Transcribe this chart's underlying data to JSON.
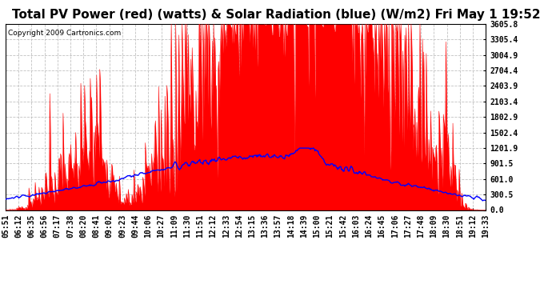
{
  "title": "Total PV Power (red) (watts) & Solar Radiation (blue) (W/m2) Fri May 1 19:52",
  "copyright": "Copyright 2009 Cartronics.com",
  "ymin": 0.0,
  "ymax": 3605.8,
  "yticks": [
    0.0,
    300.5,
    601.0,
    901.5,
    1201.9,
    1502.4,
    1802.9,
    2103.4,
    2403.9,
    2704.4,
    3004.9,
    3305.4,
    3605.8
  ],
  "xtick_labels": [
    "05:51",
    "06:12",
    "06:35",
    "06:56",
    "07:17",
    "07:38",
    "08:20",
    "08:41",
    "09:02",
    "09:23",
    "09:44",
    "10:06",
    "10:27",
    "11:09",
    "11:30",
    "11:51",
    "12:12",
    "12:33",
    "12:54",
    "13:15",
    "13:36",
    "13:57",
    "14:18",
    "14:39",
    "15:00",
    "15:21",
    "15:42",
    "16:03",
    "16:24",
    "16:45",
    "17:06",
    "17:27",
    "17:48",
    "18:09",
    "18:30",
    "18:51",
    "19:12",
    "19:33"
  ],
  "background_color": "#ffffff",
  "plot_bg_color": "#ffffff",
  "grid_color": "#bbbbbb",
  "red_color": "#ff0000",
  "blue_color": "#0000ff",
  "title_fontsize": 11,
  "tick_fontsize": 7,
  "copyright_fontsize": 6.5
}
